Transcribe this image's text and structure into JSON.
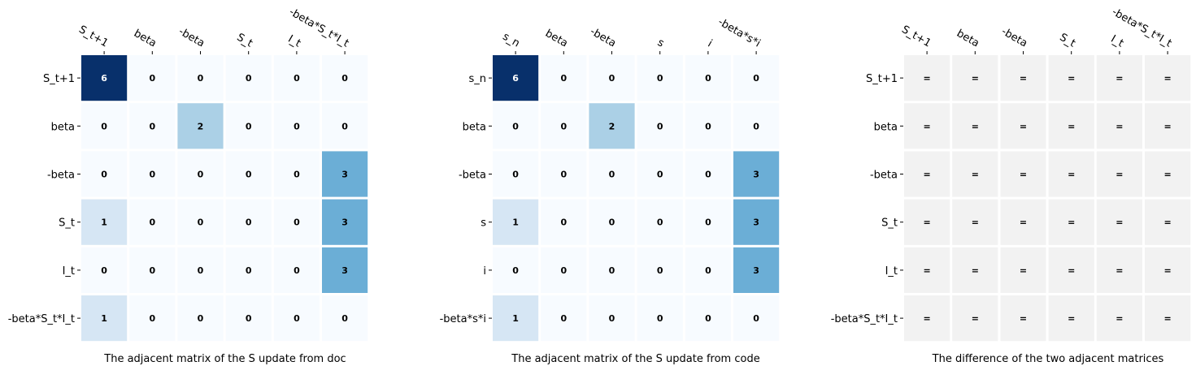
{
  "chart_data": [
    {
      "type": "heatmap",
      "title": "The adjacent matrix of the S update from doc",
      "xlabels": [
        "S_t+1",
        "beta",
        "-beta",
        "S_t",
        "I_t",
        "-beta*S_t*I_t"
      ],
      "ylabels": [
        "S_t+1",
        "beta",
        "-beta",
        "S_t",
        "I_t",
        "-beta*S_t*I_t"
      ],
      "values": [
        [
          6,
          0,
          0,
          0,
          0,
          0
        ],
        [
          0,
          0,
          2,
          0,
          0,
          0
        ],
        [
          0,
          0,
          0,
          0,
          0,
          3
        ],
        [
          1,
          0,
          0,
          0,
          0,
          3
        ],
        [
          0,
          0,
          0,
          0,
          0,
          3
        ],
        [
          1,
          0,
          0,
          0,
          0,
          0
        ]
      ],
      "colormap": "Blues",
      "vmin": 0,
      "vmax": 6
    },
    {
      "type": "heatmap",
      "title": "The adjacent matrix of the S update from code",
      "xlabels": [
        "s_n",
        "beta",
        "-beta",
        "s",
        "i",
        "-beta*s*i"
      ],
      "ylabels": [
        "s_n",
        "beta",
        "-beta",
        "s",
        "i",
        "-beta*s*i"
      ],
      "values": [
        [
          6,
          0,
          0,
          0,
          0,
          0
        ],
        [
          0,
          0,
          2,
          0,
          0,
          0
        ],
        [
          0,
          0,
          0,
          0,
          0,
          3
        ],
        [
          1,
          0,
          0,
          0,
          0,
          3
        ],
        [
          0,
          0,
          0,
          0,
          0,
          3
        ],
        [
          1,
          0,
          0,
          0,
          0,
          0
        ]
      ],
      "colormap": "Blues",
      "vmin": 0,
      "vmax": 6
    },
    {
      "type": "heatmap",
      "title": "The difference of the two adjacent matrices",
      "xlabels": [
        "S_t+1",
        "beta",
        "-beta",
        "S_t",
        "I_t",
        "-beta*S_t*I_t"
      ],
      "ylabels": [
        "S_t+1",
        "beta",
        "-beta",
        "S_t",
        "I_t",
        "-beta*S_t*I_t"
      ],
      "values": [
        [
          "=",
          "=",
          "=",
          "=",
          "=",
          "="
        ],
        [
          "=",
          "=",
          "=",
          "=",
          "=",
          "="
        ],
        [
          "=",
          "=",
          "=",
          "=",
          "=",
          "="
        ],
        [
          "=",
          "=",
          "=",
          "=",
          "=",
          "="
        ],
        [
          "=",
          "=",
          "=",
          "=",
          "=",
          "="
        ],
        [
          "=",
          "=",
          "=",
          "=",
          "=",
          "="
        ]
      ],
      "cell_color": "#f2f2f2"
    }
  ]
}
